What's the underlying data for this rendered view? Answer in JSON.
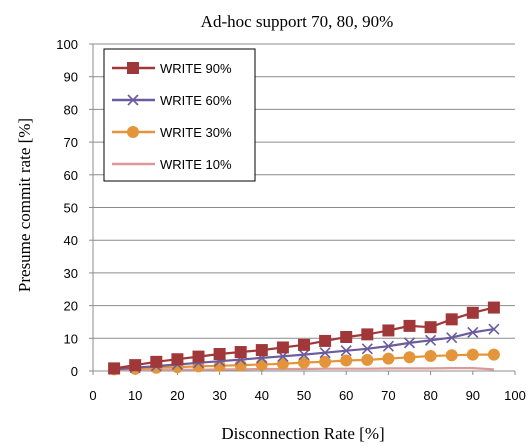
{
  "chart_data": {
    "type": "line",
    "title": "Ad-hoc support 70, 80, 90%",
    "xlabel": "Disconnection Rate [%]",
    "ylabel": "Presume commit rate [%]",
    "xlim": [
      0,
      100
    ],
    "ylim": [
      0,
      100
    ],
    "xticks": [
      "0",
      "10",
      "20",
      "30",
      "40",
      "50",
      "60",
      "70",
      "80",
      "90",
      "100"
    ],
    "yticks": [
      "0",
      "10",
      "20",
      "30",
      "40",
      "50",
      "60",
      "70",
      "80",
      "90",
      "100"
    ],
    "grid": "horizontal",
    "legend_position": "top-left",
    "x": [
      5,
      10,
      15,
      20,
      25,
      30,
      35,
      40,
      45,
      50,
      55,
      60,
      65,
      70,
      75,
      80,
      85,
      90,
      95
    ],
    "series": [
      {
        "name": "WRITE 90%",
        "color": "#a0383a",
        "marker": "square",
        "values": [
          0.8,
          1.8,
          2.8,
          3.6,
          4.4,
          5.2,
          5.8,
          6.4,
          7.2,
          8.0,
          9.2,
          10.4,
          11.2,
          12.4,
          13.8,
          13.4,
          15.8,
          17.8,
          19.4
        ]
      },
      {
        "name": "WRITE 60%",
        "color": "#6a5c9e",
        "marker": "x",
        "values": [
          0.5,
          1.0,
          1.5,
          2.0,
          2.5,
          3.0,
          3.5,
          4.0,
          4.5,
          5.0,
          5.6,
          6.2,
          6.8,
          7.6,
          8.6,
          9.4,
          10.2,
          11.8,
          12.8
        ]
      },
      {
        "name": "WRITE 30%",
        "color": "#e4953a",
        "marker": "circle",
        "values": [
          0.5,
          0.7,
          1.0,
          1.2,
          1.4,
          1.6,
          1.8,
          2.0,
          2.2,
          2.6,
          2.8,
          3.2,
          3.4,
          3.8,
          4.2,
          4.6,
          4.8,
          5.0,
          5.0
        ]
      },
      {
        "name": "WRITE 10%",
        "color": "#d99a98",
        "marker": "none",
        "values": [
          0.2,
          0.3,
          0.3,
          0.4,
          0.4,
          0.5,
          0.5,
          0.6,
          0.6,
          0.6,
          0.7,
          0.7,
          0.7,
          0.8,
          0.8,
          0.8,
          0.9,
          0.9,
          0.5
        ]
      }
    ]
  }
}
